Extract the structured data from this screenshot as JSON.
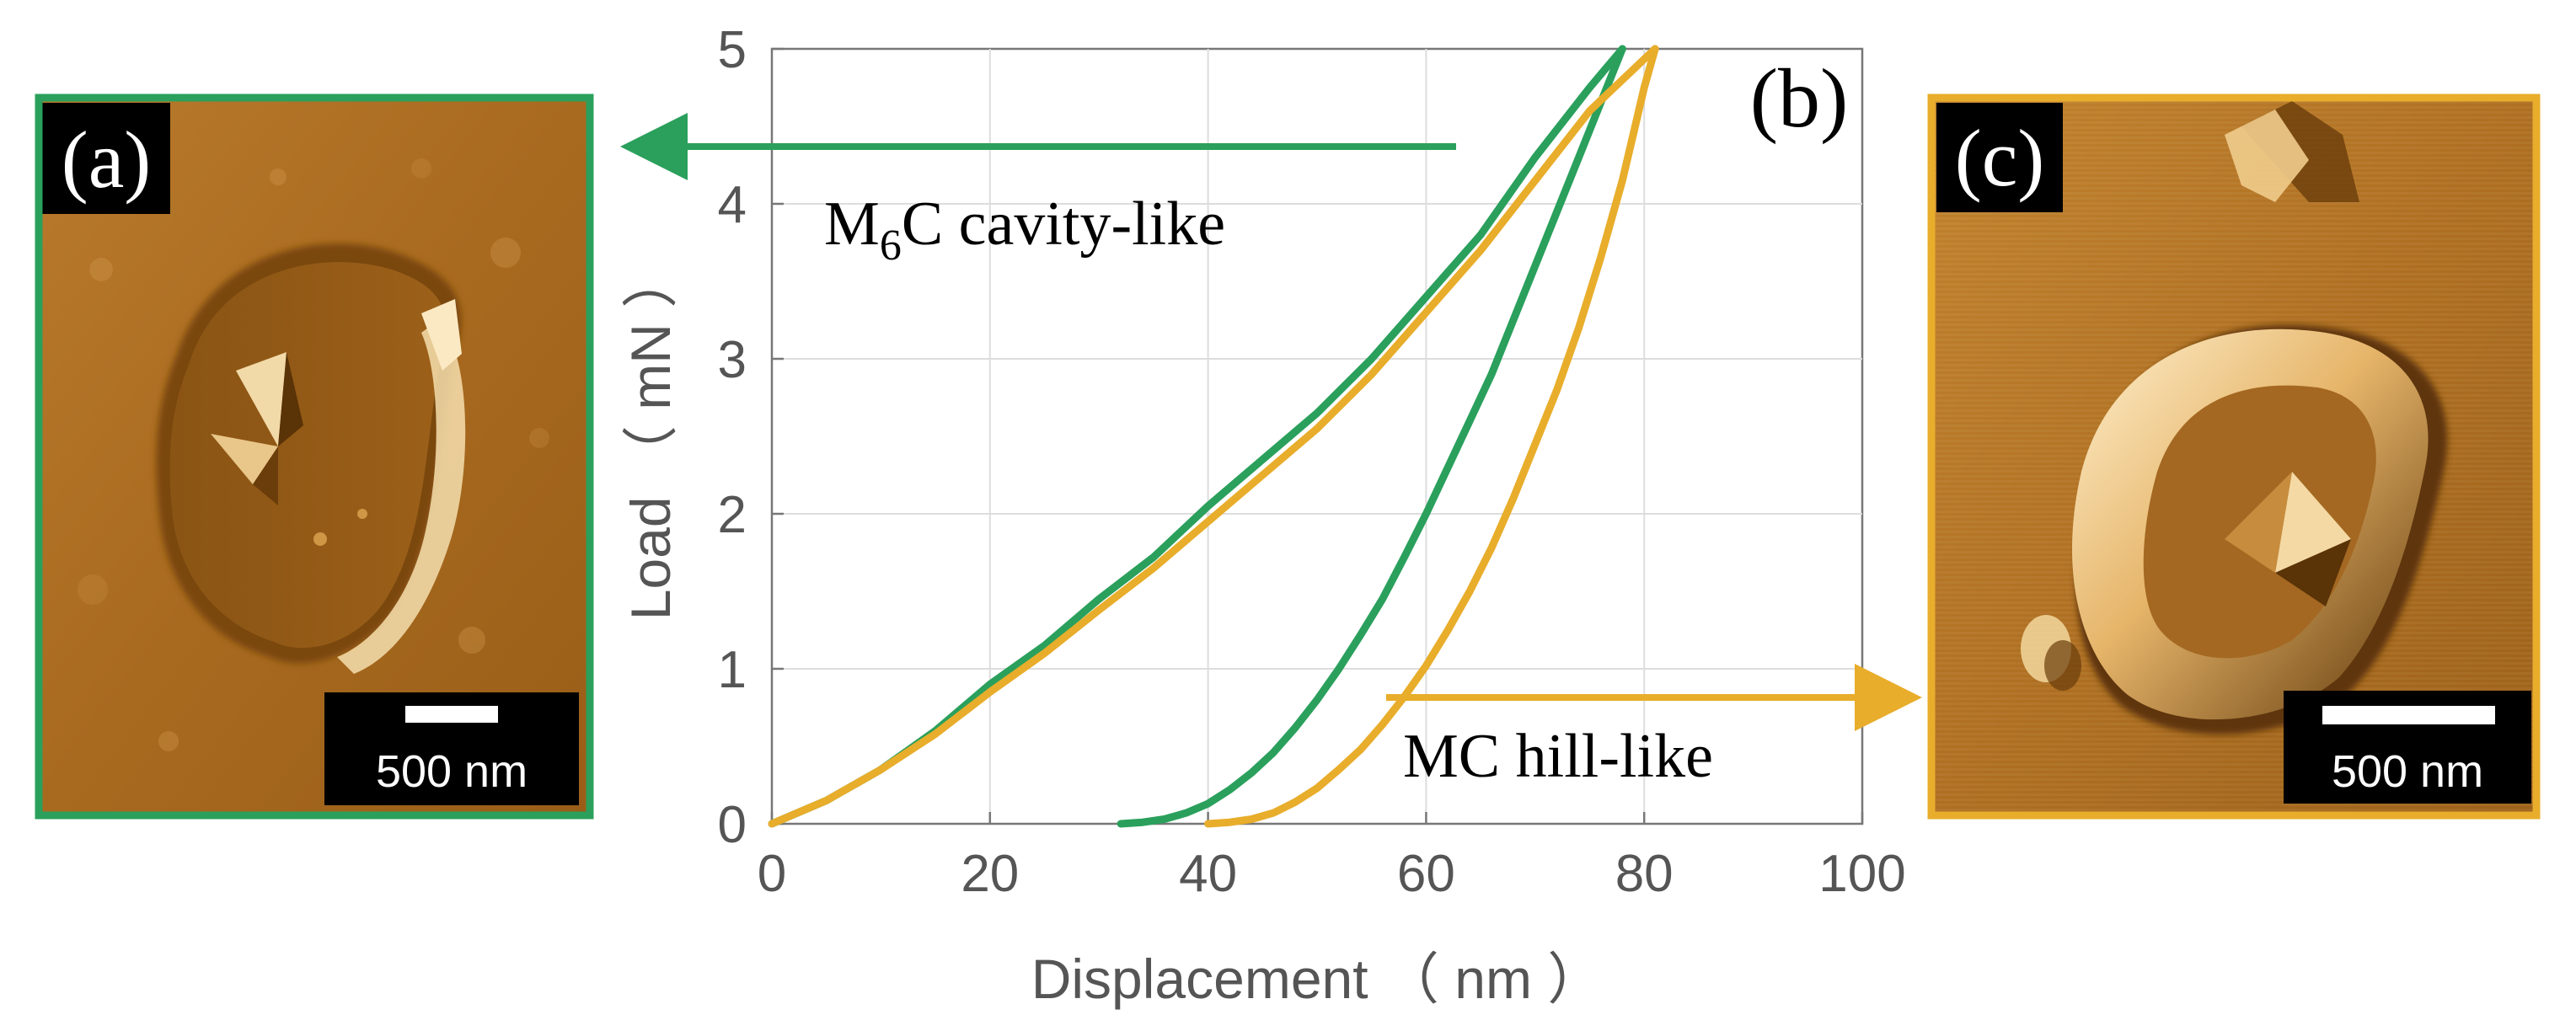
{
  "colors": {
    "green": "#2aa05c",
    "orange": "#e8ad2b",
    "axis_text": "#555555",
    "grid": "#dddddd",
    "afm_dark": "#5a3508",
    "afm_mid": "#a8681c",
    "afm_light": "#f4d8a0"
  },
  "panel_a": {
    "label": "(a)",
    "scale_bar_text": "500 nm",
    "border_color": "#2aa05c"
  },
  "panel_c": {
    "label": "(c)",
    "scale_bar_text": "500 nm",
    "border_color": "#e8ad2b"
  },
  "chart_data": {
    "type": "line",
    "panel_label": "(b)",
    "xlabel": "Displacement （ nm ）",
    "ylabel": "Load （ mN ）",
    "xlim": [
      0,
      100
    ],
    "ylim": [
      0,
      5
    ],
    "xticks": [
      0,
      20,
      40,
      60,
      80,
      100
    ],
    "yticks": [
      0,
      1,
      2,
      3,
      4,
      5
    ],
    "grid": true,
    "series": [
      {
        "name": "M6C cavity-like",
        "color": "#2aa05c",
        "loading": {
          "x": [
            0,
            5,
            10,
            15,
            20,
            25,
            30,
            35,
            40,
            45,
            50,
            55,
            60,
            65,
            70,
            75,
            78
          ],
          "y": [
            0,
            0.15,
            0.35,
            0.6,
            0.9,
            1.15,
            1.45,
            1.72,
            2.05,
            2.35,
            2.65,
            3.0,
            3.4,
            3.8,
            4.3,
            4.75,
            5.0
          ]
        },
        "unloading": {
          "x": [
            78,
            76,
            74,
            72,
            70,
            68,
            66,
            64,
            62,
            60,
            58,
            56,
            54,
            52,
            50,
            48,
            46,
            44,
            42,
            40,
            38,
            36,
            34,
            32
          ],
          "y": [
            5.0,
            4.65,
            4.3,
            3.95,
            3.6,
            3.25,
            2.9,
            2.6,
            2.3,
            2.0,
            1.72,
            1.45,
            1.22,
            1.0,
            0.8,
            0.62,
            0.46,
            0.33,
            0.22,
            0.13,
            0.07,
            0.03,
            0.01,
            0.0
          ]
        },
        "annotation": {
          "text_main": "M",
          "text_sub": "6",
          "text_rest": "C cavity-like",
          "points_to": "(a)"
        }
      },
      {
        "name": "MC hill-like",
        "color": "#e8ad2b",
        "loading": {
          "x": [
            0,
            5,
            10,
            15,
            20,
            25,
            30,
            35,
            40,
            45,
            50,
            55,
            60,
            65,
            70,
            75,
            81
          ],
          "y": [
            0,
            0.15,
            0.35,
            0.58,
            0.85,
            1.1,
            1.38,
            1.65,
            1.95,
            2.25,
            2.55,
            2.9,
            3.3,
            3.7,
            4.15,
            4.6,
            5.0
          ]
        },
        "unloading": {
          "x": [
            81,
            80,
            79,
            78,
            76,
            74,
            72,
            70,
            68,
            66,
            64,
            62,
            60,
            58,
            56,
            54,
            52,
            50,
            48,
            46,
            44,
            42,
            40
          ],
          "y": [
            5.0,
            4.75,
            4.45,
            4.15,
            3.65,
            3.2,
            2.8,
            2.45,
            2.1,
            1.78,
            1.5,
            1.25,
            1.02,
            0.82,
            0.64,
            0.48,
            0.35,
            0.23,
            0.14,
            0.07,
            0.03,
            0.01,
            0.0
          ]
        },
        "annotation": {
          "text": "MC hill-like",
          "points_to": "(c)"
        }
      }
    ]
  }
}
